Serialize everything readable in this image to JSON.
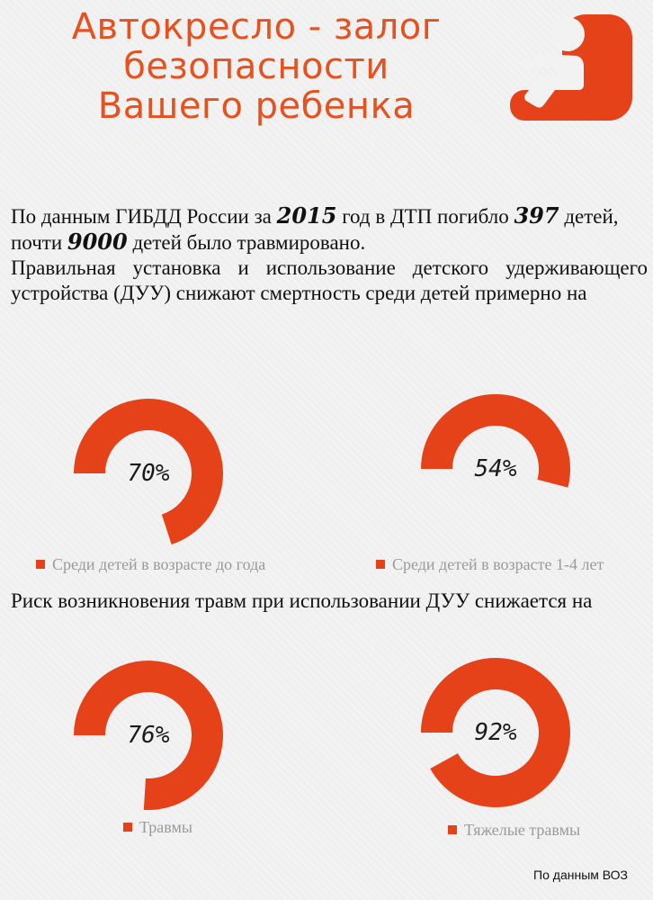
{
  "header": {
    "title_line1": "Автокресло - залог",
    "title_line2": "безопасности",
    "title_line3": "Вашего ребенка",
    "icon": "car-seat-icon",
    "accent_color": "#e5521f"
  },
  "intro": {
    "t1": "По данным ГИБДД  России за ",
    "year": "2015",
    "t2": " год в ДТП погибло ",
    "deaths": "397",
    "t3": " детей, почти ",
    "injured": "9000",
    "t4": " детей было травмировано."
  },
  "mortality": {
    "text": "Правильная установка и использование детского удерживающего устройства (ДУУ) снижают смертность среди детей примерно на",
    "charts": [
      {
        "label": "70%",
        "value": 70,
        "legend": "Среди детей в возрасте до года"
      },
      {
        "label": "54%",
        "value": 54,
        "legend": "Среди детей в возрасте 1-4 лет"
      }
    ]
  },
  "injury": {
    "text": "Риск возникновения травм при использовании ДУУ снижается на",
    "charts": [
      {
        "label": "76%",
        "value": 76,
        "legend": "Травмы"
      },
      {
        "label": "92%",
        "value": 92,
        "legend": "Тяжелые травмы"
      }
    ]
  },
  "source": "По данным ВОЗ",
  "chart_data": {
    "type": "pie",
    "values": [
      70,
      54,
      76,
      92
    ],
    "categories": [
      "Среди детей в возрасте до года",
      "Среди детей в возрасте 1-4 лет",
      "Травмы",
      "Тяжелые травмы"
    ],
    "color": "#e5421a"
  }
}
